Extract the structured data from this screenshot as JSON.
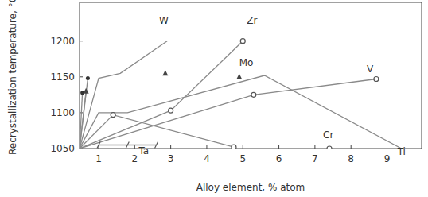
{
  "chart_data": {
    "type": "line",
    "x_label": "Alloy element, % atom",
    "y_label": "Recrystallization temperature, °C",
    "xlim": [
      0.47,
      9.96
    ],
    "ylim": [
      1050,
      1254
    ],
    "xticks": [
      1,
      2,
      3,
      4,
      5,
      6,
      7,
      8,
      9
    ],
    "yticks": [
      1050,
      1100,
      1150,
      1200
    ],
    "grid": false,
    "color": "#8a8a8a",
    "series": [
      {
        "name": "W",
        "x": [
          0.47,
          1.0,
          1.6,
          2.9
        ],
        "values": [
          1050,
          1148,
          1155,
          1200
        ],
        "marker": "none"
      },
      {
        "name": "Zr",
        "x": [
          0.47,
          3.0,
          5.0
        ],
        "values": [
          1050,
          1103,
          1200
        ],
        "marker": "circle_open"
      },
      {
        "name": "Mo",
        "x": [
          2.85,
          null,
          4.9
        ],
        "values": [
          1155,
          null,
          1150
        ],
        "marker": "triangle"
      },
      {
        "name": "V",
        "x": [
          0.47,
          5.3,
          8.7
        ],
        "values": [
          1050,
          1125,
          1147
        ],
        "marker": "circle_open"
      },
      {
        "name": "Ti",
        "x": [
          0.47,
          1.0,
          1.8,
          5.6,
          9.4
        ],
        "values": [
          1050,
          1100,
          1100,
          1152,
          1050
        ],
        "marker": "none"
      },
      {
        "name": "Cr",
        "x": [
          0.47,
          1.4,
          4.75,
          null,
          7.4
        ],
        "values": [
          1050,
          1097,
          1052,
          null,
          1050
        ],
        "marker": "circle_open"
      },
      {
        "name": "Ta",
        "x": [
          1.0,
          1.8,
          2.6
        ],
        "values": [
          1055,
          1055,
          1055
        ],
        "marker": "slash"
      },
      {
        "x": [
          0.47,
          0.7
        ],
        "values": [
          1050,
          1148
        ],
        "marker": "circle"
      },
      {
        "x": [
          0.47,
          0.55
        ],
        "values": [
          1050,
          1128
        ],
        "marker": "circle"
      },
      {
        "x": [
          0.47,
          0.65
        ],
        "values": [
          1050,
          1130
        ],
        "marker": "triangle"
      }
    ]
  }
}
